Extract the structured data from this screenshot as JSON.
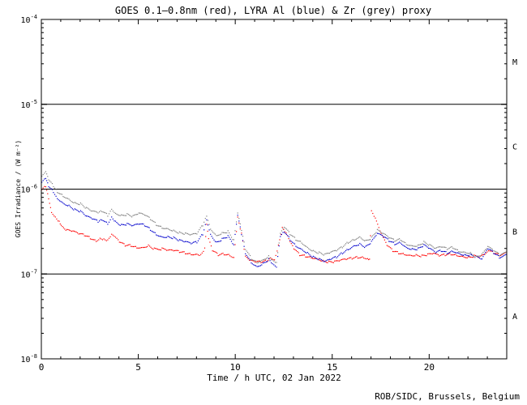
{
  "chart_data": {
    "type": "scatter",
    "title": "GOES 0.1–0.8nm (red), LYRA Al (blue) & Zr (grey) proxy",
    "xlabel": "Time / h UTC, 02 Jan 2022",
    "ylabel": "GOES Irradiance / (W m⁻²)",
    "xlim": [
      0,
      24
    ],
    "ylim": [
      1e-08,
      0.0001
    ],
    "yscale": "log",
    "x_ticks": [
      0,
      5,
      10,
      15,
      20
    ],
    "y_ticks": [
      {
        "value": 0.0001,
        "base": "10",
        "exp": "-4"
      },
      {
        "value": 1e-05,
        "base": "10",
        "exp": "-5"
      },
      {
        "value": 1e-06,
        "base": "10",
        "exp": "-6"
      },
      {
        "value": 1e-07,
        "base": "10",
        "exp": "-7"
      },
      {
        "value": 1e-08,
        "base": "10",
        "exp": "-8"
      }
    ],
    "flare_class_lines": [
      1e-05,
      1e-06,
      1e-07
    ],
    "flare_classes": [
      {
        "label": "M",
        "value": 3.2e-05
      },
      {
        "label": "C",
        "value": 3.2e-06
      },
      {
        "label": "B",
        "value": 3.2e-07
      },
      {
        "label": "A",
        "value": 3.2e-08
      }
    ],
    "credit": "ROB/SIDC, Brussels, Belgium",
    "series": [
      {
        "name": "GOES 0.1–0.8nm",
        "color": "#ff0000",
        "points": [
          [
            0.0,
            1e-06
          ],
          [
            0.2,
            1.1e-06
          ],
          [
            0.35,
            8e-07
          ],
          [
            0.5,
            5.5e-07
          ],
          [
            0.7,
            4.8e-07
          ],
          [
            0.9,
            4.2e-07
          ],
          [
            1.0,
            3.7e-07
          ],
          [
            1.3,
            3.3e-07
          ],
          [
            1.6,
            3.2e-07
          ],
          [
            1.9,
            3e-07
          ],
          [
            2.2,
            2.9e-07
          ],
          [
            2.5,
            2.7e-07
          ],
          [
            2.8,
            2.5e-07
          ],
          [
            3.0,
            2.7e-07
          ],
          [
            3.2,
            2.6e-07
          ],
          [
            3.4,
            2.5e-07
          ],
          [
            3.6,
            2.9e-07
          ],
          [
            3.8,
            2.7e-07
          ],
          [
            4.0,
            2.4e-07
          ],
          [
            4.3,
            2.2e-07
          ],
          [
            4.6,
            2.2e-07
          ],
          [
            4.9,
            2.1e-07
          ],
          [
            5.2,
            2.1e-07
          ],
          [
            5.5,
            2.2e-07
          ],
          [
            5.8,
            2e-07
          ],
          [
            6.2,
            2e-07
          ],
          [
            6.5,
            1.9e-07
          ],
          [
            6.8,
            1.9e-07
          ],
          [
            7.1,
            1.85e-07
          ],
          [
            7.4,
            1.8e-07
          ],
          [
            7.7,
            1.75e-07
          ],
          [
            8.0,
            1.75e-07
          ],
          [
            8.2,
            1.7e-07
          ],
          [
            8.4,
            2e-07
          ],
          [
            8.5,
            3.8e-07
          ],
          [
            8.6,
            2.6e-07
          ],
          [
            8.8,
            1.9e-07
          ],
          [
            9.1,
            1.7e-07
          ],
          [
            9.4,
            1.75e-07
          ],
          [
            9.7,
            1.7e-07
          ],
          [
            9.9,
            1.6e-07
          ],
          [
            10.1,
            4.7e-07
          ],
          [
            10.3,
            3e-07
          ],
          [
            10.5,
            1.6e-07
          ],
          [
            10.7,
            1.45e-07
          ],
          [
            11.0,
            1.4e-07
          ],
          [
            11.3,
            1.4e-07
          ],
          [
            11.6,
            1.45e-07
          ],
          [
            11.8,
            1.6e-07
          ],
          [
            12.0,
            1.5e-07
          ],
          [
            12.2,
            2.2e-07
          ],
          [
            12.4,
            3.5e-07
          ],
          [
            12.6,
            3e-07
          ],
          [
            12.8,
            2.4e-07
          ],
          [
            13.0,
            2e-07
          ],
          [
            13.3,
            1.7e-07
          ],
          [
            13.6,
            1.65e-07
          ],
          [
            13.9,
            1.6e-07
          ],
          [
            14.2,
            1.55e-07
          ],
          [
            14.5,
            1.45e-07
          ],
          [
            14.8,
            1.4e-07
          ],
          [
            15.1,
            1.4e-07
          ],
          [
            15.4,
            1.45e-07
          ],
          [
            15.7,
            1.5e-07
          ],
          [
            16.0,
            1.55e-07
          ],
          [
            16.3,
            1.6e-07
          ],
          [
            16.6,
            1.6e-07
          ],
          [
            16.8,
            1.55e-07
          ],
          [
            16.9,
            1.5e-07
          ],
          [
            17.0,
            5.5e-07
          ],
          [
            17.2,
            4.5e-07
          ],
          [
            17.5,
            3e-07
          ],
          [
            17.8,
            2.2e-07
          ],
          [
            18.1,
            1.9e-07
          ],
          [
            18.4,
            1.8e-07
          ],
          [
            18.7,
            1.75e-07
          ],
          [
            19.0,
            1.7e-07
          ],
          [
            19.3,
            1.7e-07
          ],
          [
            19.6,
            1.65e-07
          ],
          [
            19.9,
            1.7e-07
          ],
          [
            20.2,
            1.75e-07
          ],
          [
            20.5,
            1.65e-07
          ],
          [
            20.8,
            1.7e-07
          ],
          [
            21.1,
            1.75e-07
          ],
          [
            21.4,
            1.7e-07
          ],
          [
            21.7,
            1.65e-07
          ],
          [
            22.0,
            1.6e-07
          ],
          [
            22.3,
            1.65e-07
          ],
          [
            22.6,
            1.6e-07
          ],
          [
            22.9,
            1.75e-07
          ],
          [
            23.1,
            1.9e-07
          ],
          [
            23.3,
            1.8e-07
          ],
          [
            23.6,
            1.7e-07
          ],
          [
            24.0,
            1.8e-07
          ]
        ]
      },
      {
        "name": "LYRA Al proxy",
        "color": "#0000cc",
        "points": [
          [
            0.0,
            1.2e-06
          ],
          [
            0.2,
            1.35e-06
          ],
          [
            0.35,
            1.1e-06
          ],
          [
            0.6,
            9.5e-07
          ],
          [
            0.8,
            8e-07
          ],
          [
            1.1,
            7e-07
          ],
          [
            1.4,
            6.5e-07
          ],
          [
            1.7,
            5.8e-07
          ],
          [
            2.0,
            5.5e-07
          ],
          [
            2.3,
            4.8e-07
          ],
          [
            2.6,
            4.5e-07
          ],
          [
            2.9,
            4.2e-07
          ],
          [
            3.1,
            4.5e-07
          ],
          [
            3.4,
            4e-07
          ],
          [
            3.6,
            4.8e-07
          ],
          [
            3.8,
            4.2e-07
          ],
          [
            4.1,
            3.8e-07
          ],
          [
            4.4,
            3.9e-07
          ],
          [
            4.7,
            3.7e-07
          ],
          [
            5.0,
            3.9e-07
          ],
          [
            5.3,
            3.8e-07
          ],
          [
            5.6,
            3.4e-07
          ],
          [
            5.9,
            3e-07
          ],
          [
            6.2,
            2.8e-07
          ],
          [
            6.5,
            2.8e-07
          ],
          [
            6.8,
            2.7e-07
          ],
          [
            7.1,
            2.5e-07
          ],
          [
            7.4,
            2.4e-07
          ],
          [
            7.7,
            2.3e-07
          ],
          [
            8.0,
            2.4e-07
          ],
          [
            8.3,
            3e-07
          ],
          [
            8.5,
            4.5e-07
          ],
          [
            8.7,
            3e-07
          ],
          [
            9.0,
            2.4e-07
          ],
          [
            9.3,
            2.6e-07
          ],
          [
            9.6,
            2.8e-07
          ],
          [
            9.9,
            2.2e-07
          ],
          [
            10.1,
            5e-07
          ],
          [
            10.3,
            3e-07
          ],
          [
            10.5,
            1.8e-07
          ],
          [
            10.8,
            1.4e-07
          ],
          [
            11.1,
            1.25e-07
          ],
          [
            11.4,
            1.35e-07
          ],
          [
            11.7,
            1.5e-07
          ],
          [
            11.9,
            1.3e-07
          ],
          [
            12.1,
            1.2e-07
          ],
          [
            12.3,
            2.8e-07
          ],
          [
            12.5,
            3.2e-07
          ],
          [
            12.8,
            2.6e-07
          ],
          [
            13.1,
            2.2e-07
          ],
          [
            13.4,
            2e-07
          ],
          [
            13.7,
            1.8e-07
          ],
          [
            14.0,
            1.6e-07
          ],
          [
            14.3,
            1.5e-07
          ],
          [
            14.6,
            1.4e-07
          ],
          [
            14.9,
            1.5e-07
          ],
          [
            15.2,
            1.6e-07
          ],
          [
            15.5,
            1.8e-07
          ],
          [
            15.8,
            2e-07
          ],
          [
            16.1,
            2.2e-07
          ],
          [
            16.4,
            2.3e-07
          ],
          [
            16.7,
            2.1e-07
          ],
          [
            17.0,
            2.4e-07
          ],
          [
            17.3,
            3e-07
          ],
          [
            17.6,
            2.8e-07
          ],
          [
            17.9,
            2.5e-07
          ],
          [
            18.2,
            2.3e-07
          ],
          [
            18.5,
            2.4e-07
          ],
          [
            18.8,
            2.1e-07
          ],
          [
            19.1,
            2e-07
          ],
          [
            19.4,
            2e-07
          ],
          [
            19.7,
            2.2e-07
          ],
          [
            20.0,
            2e-07
          ],
          [
            20.3,
            1.8e-07
          ],
          [
            20.6,
            1.9e-07
          ],
          [
            20.9,
            1.8e-07
          ],
          [
            21.2,
            1.9e-07
          ],
          [
            21.5,
            1.8e-07
          ],
          [
            21.8,
            1.7e-07
          ],
          [
            22.1,
            1.7e-07
          ],
          [
            22.4,
            1.6e-07
          ],
          [
            22.7,
            1.5e-07
          ],
          [
            23.0,
            2e-07
          ],
          [
            23.3,
            1.8e-07
          ],
          [
            23.6,
            1.6e-07
          ],
          [
            24.0,
            1.7e-07
          ]
        ]
      },
      {
        "name": "LYRA Zr proxy",
        "color": "#808080",
        "points": [
          [
            0.0,
            1.4e-06
          ],
          [
            0.2,
            1.6e-06
          ],
          [
            0.35,
            1.3e-06
          ],
          [
            0.6,
            1.1e-06
          ],
          [
            0.8,
            9.5e-07
          ],
          [
            1.1,
            8.5e-07
          ],
          [
            1.4,
            7.8e-07
          ],
          [
            1.7,
            7e-07
          ],
          [
            2.0,
            6.8e-07
          ],
          [
            2.3,
            6e-07
          ],
          [
            2.6,
            5.5e-07
          ],
          [
            2.9,
            5.3e-07
          ],
          [
            3.1,
            5.6e-07
          ],
          [
            3.4,
            5e-07
          ],
          [
            3.6,
            6e-07
          ],
          [
            3.8,
            5.3e-07
          ],
          [
            4.1,
            5e-07
          ],
          [
            4.4,
            5.1e-07
          ],
          [
            4.7,
            4.8e-07
          ],
          [
            5.0,
            5.2e-07
          ],
          [
            5.3,
            5e-07
          ],
          [
            5.6,
            4.5e-07
          ],
          [
            5.9,
            3.9e-07
          ],
          [
            6.2,
            3.6e-07
          ],
          [
            6.5,
            3.5e-07
          ],
          [
            6.8,
            3.3e-07
          ],
          [
            7.1,
            3.1e-07
          ],
          [
            7.4,
            3e-07
          ],
          [
            7.7,
            2.9e-07
          ],
          [
            8.0,
            3e-07
          ],
          [
            8.3,
            3.8e-07
          ],
          [
            8.5,
            5e-07
          ],
          [
            8.7,
            3.5e-07
          ],
          [
            9.0,
            2.9e-07
          ],
          [
            9.3,
            3.1e-07
          ],
          [
            9.6,
            3.2e-07
          ],
          [
            9.9,
            2.5e-07
          ],
          [
            10.1,
            5.2e-07
          ],
          [
            10.3,
            3.3e-07
          ],
          [
            10.5,
            2e-07
          ],
          [
            10.8,
            1.55e-07
          ],
          [
            11.1,
            1.4e-07
          ],
          [
            11.4,
            1.5e-07
          ],
          [
            11.7,
            1.65e-07
          ],
          [
            11.9,
            1.45e-07
          ],
          [
            12.1,
            1.35e-07
          ],
          [
            12.3,
            3e-07
          ],
          [
            12.5,
            3.6e-07
          ],
          [
            12.8,
            3e-07
          ],
          [
            13.1,
            2.6e-07
          ],
          [
            13.4,
            2.4e-07
          ],
          [
            13.7,
            2.1e-07
          ],
          [
            14.0,
            1.9e-07
          ],
          [
            14.3,
            1.8e-07
          ],
          [
            14.6,
            1.7e-07
          ],
          [
            14.9,
            1.8e-07
          ],
          [
            15.2,
            1.9e-07
          ],
          [
            15.5,
            2.1e-07
          ],
          [
            15.8,
            2.4e-07
          ],
          [
            16.1,
            2.6e-07
          ],
          [
            16.4,
            2.8e-07
          ],
          [
            16.7,
            2.5e-07
          ],
          [
            17.0,
            2.7e-07
          ],
          [
            17.3,
            3.3e-07
          ],
          [
            17.6,
            3e-07
          ],
          [
            17.9,
            2.7e-07
          ],
          [
            18.2,
            2.5e-07
          ],
          [
            18.5,
            2.6e-07
          ],
          [
            18.8,
            2.3e-07
          ],
          [
            19.1,
            2.2e-07
          ],
          [
            19.4,
            2.2e-07
          ],
          [
            19.7,
            2.4e-07
          ],
          [
            20.0,
            2.2e-07
          ],
          [
            20.3,
            2e-07
          ],
          [
            20.6,
            2.1e-07
          ],
          [
            20.9,
            2e-07
          ],
          [
            21.2,
            2.1e-07
          ],
          [
            21.5,
            1.9e-07
          ],
          [
            21.8,
            1.85e-07
          ],
          [
            22.1,
            1.8e-07
          ],
          [
            22.4,
            1.6e-07
          ],
          [
            22.7,
            1.7e-07
          ],
          [
            23.0,
            2.1e-07
          ],
          [
            23.3,
            1.9e-07
          ],
          [
            23.6,
            1.7e-07
          ],
          [
            24.0,
            1.8e-07
          ]
        ]
      }
    ]
  }
}
